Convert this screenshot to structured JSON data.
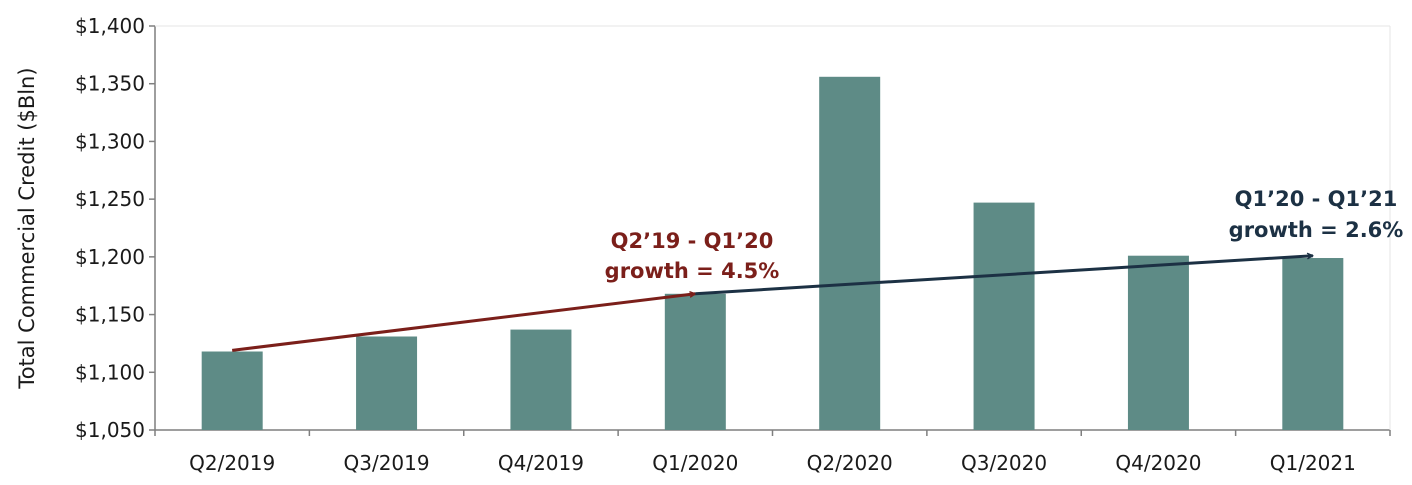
{
  "chart_data": {
    "type": "bar",
    "title": "",
    "xlabel": "",
    "ylabel": "Total Commercial Credit ($Bln)",
    "categories": [
      "Q2/2019",
      "Q3/2019",
      "Q4/2019",
      "Q1/2020",
      "Q2/2020",
      "Q3/2020",
      "Q4/2020",
      "Q1/2021"
    ],
    "values": [
      1118,
      1131,
      1137,
      1168,
      1356,
      1247,
      1201,
      1199
    ],
    "ylim": [
      1050,
      1400
    ],
    "yticks": [
      1050,
      1100,
      1150,
      1200,
      1250,
      1300,
      1350,
      1400
    ],
    "ytick_labels": [
      "$1,050",
      "$1,100",
      "$1,150",
      "$1,200",
      "$1,250",
      "$1,300",
      "$1,350",
      "$1,400"
    ],
    "grid": false,
    "colors": {
      "bar": "#5e8b86",
      "axis": "#7f7f7f",
      "arrow1": "#7b1f1a",
      "arrow2": "#1c3144"
    },
    "annotations": [
      {
        "line1": "Q2’19 - Q1’20",
        "line2": "growth = 4.5%",
        "from_category": "Q2/2019",
        "from_value": 1119,
        "to_category": "Q1/2020",
        "to_value": 1168,
        "color": "#7b1f1a"
      },
      {
        "line1": "Q1’20 - Q1’21",
        "line2": "growth = 2.6%",
        "from_category": "Q1/2020",
        "from_value": 1168,
        "to_category": "Q1/2021",
        "to_value": 1201,
        "color": "#1c3144"
      }
    ]
  }
}
